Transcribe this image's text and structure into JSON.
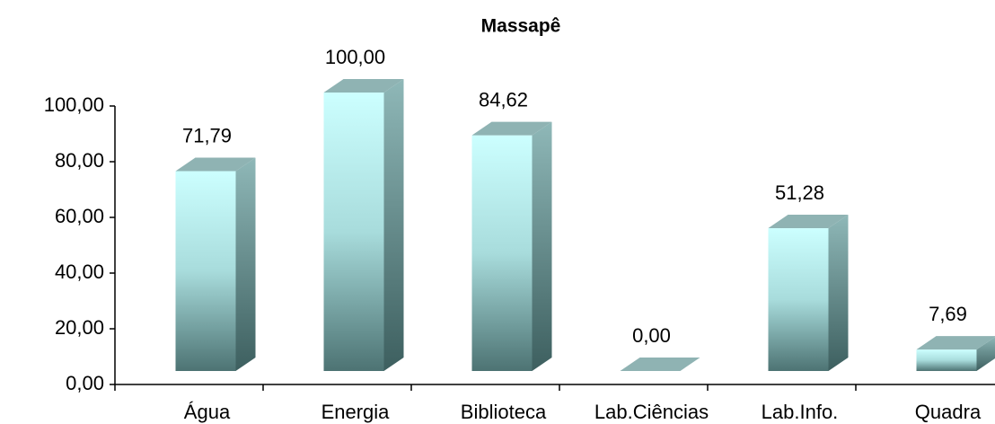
{
  "chart_data": {
    "type": "bar",
    "title": "Massapê",
    "categories": [
      "Água",
      "Energia",
      "Biblioteca",
      "Lab.Ciências",
      "Lab.Info.",
      "Quadra"
    ],
    "values": [
      71.79,
      100,
      84.62,
      0,
      51.28,
      7.69
    ],
    "value_labels": [
      "71,79",
      "100,00",
      "84,62",
      "0,00",
      "51,28",
      "7,69"
    ],
    "color": "#bff5f5",
    "ylim": [
      0,
      100
    ],
    "yticks": [
      {
        "value": 0,
        "label": "0,00"
      },
      {
        "value": 20,
        "label": "20,00"
      },
      {
        "value": 40,
        "label": "40,00"
      },
      {
        "value": 60,
        "label": "60,00"
      },
      {
        "value": 80,
        "label": "80,00"
      },
      {
        "value": 100,
        "label": "100,00"
      }
    ],
    "grid": false
  }
}
